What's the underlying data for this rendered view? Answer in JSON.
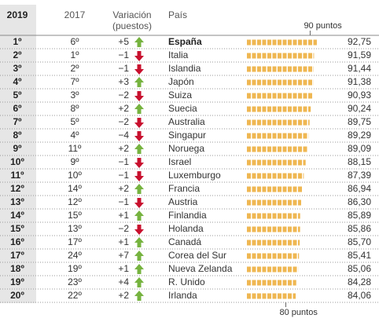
{
  "table": {
    "headers": {
      "rank_2019": "2019",
      "rank_2017": "2017",
      "change": [
        "Variación",
        "(puestos)"
      ],
      "country": "País"
    },
    "bar_scale": {
      "xlim": [
        64,
        96
      ],
      "xticks": [
        {
          "value": 90,
          "label": "90 puntos"
        },
        {
          "value": 80,
          "label": "80 puntos"
        }
      ],
      "color": "#efb752"
    },
    "rows": [
      {
        "rank_2019": "1º",
        "rank_2017": "6º",
        "change": "+5",
        "country": "España",
        "score": 92.75,
        "score_label": "92,75"
      },
      {
        "rank_2019": "2º",
        "rank_2017": "1º",
        "change": "−1",
        "country": "Italia",
        "score": 91.59,
        "score_label": "91,59"
      },
      {
        "rank_2019": "3º",
        "rank_2017": "2º",
        "change": "−1",
        "country": "Islandia",
        "score": 91.44,
        "score_label": "91,44"
      },
      {
        "rank_2019": "4º",
        "rank_2017": "7º",
        "change": "+3",
        "country": "Japón",
        "score": 91.38,
        "score_label": "91,38"
      },
      {
        "rank_2019": "5º",
        "rank_2017": "3º",
        "change": "−2",
        "country": "Suiza",
        "score": 90.93,
        "score_label": "90,93"
      },
      {
        "rank_2019": "6º",
        "rank_2017": "8º",
        "change": "+2",
        "country": "Suecia",
        "score": 90.24,
        "score_label": "90,24"
      },
      {
        "rank_2019": "7º",
        "rank_2017": "5º",
        "change": "−2",
        "country": "Australia",
        "score": 89.75,
        "score_label": "89,75"
      },
      {
        "rank_2019": "8º",
        "rank_2017": "4º",
        "change": "−4",
        "country": "Singapur",
        "score": 89.29,
        "score_label": "89,29"
      },
      {
        "rank_2019": "9º",
        "rank_2017": "11º",
        "change": "+2",
        "country": "Noruega",
        "score": 89.09,
        "score_label": "89,09"
      },
      {
        "rank_2019": "10º",
        "rank_2017": "9º",
        "change": "−1",
        "country": "Israel",
        "score": 88.15,
        "score_label": "88,15"
      },
      {
        "rank_2019": "11º",
        "rank_2017": "10º",
        "change": "−1",
        "country": "Luxemburgo",
        "score": 87.39,
        "score_label": "87,39"
      },
      {
        "rank_2019": "12º",
        "rank_2017": "14º",
        "change": "+2",
        "country": "Francia",
        "score": 86.94,
        "score_label": "86,94"
      },
      {
        "rank_2019": "13º",
        "rank_2017": "12º",
        "change": "−1",
        "country": "Austria",
        "score": 86.3,
        "score_label": "86,30"
      },
      {
        "rank_2019": "14º",
        "rank_2017": "15º",
        "change": "+1",
        "country": "Finlandia",
        "score": 85.89,
        "score_label": "85,89"
      },
      {
        "rank_2019": "15º",
        "rank_2017": "13º",
        "change": "−2",
        "country": "Holanda",
        "score": 85.86,
        "score_label": "85,86"
      },
      {
        "rank_2019": "16º",
        "rank_2017": "17º",
        "change": "+1",
        "country": "Canadá",
        "score": 85.7,
        "score_label": "85,70"
      },
      {
        "rank_2019": "17º",
        "rank_2017": "24º",
        "change": "+7",
        "country": "Corea del Sur",
        "score": 85.41,
        "score_label": "85,41"
      },
      {
        "rank_2019": "18º",
        "rank_2017": "19º",
        "change": "+1",
        "country": "Nueva Zelanda",
        "score": 85.06,
        "score_label": "85,06"
      },
      {
        "rank_2019": "19º",
        "rank_2017": "23º",
        "change": "+4",
        "country": "R. Unido",
        "score": 84.28,
        "score_label": "84,28"
      },
      {
        "rank_2019": "20º",
        "rank_2017": "22º",
        "change": "+2",
        "country": "Irlanda",
        "score": 84.06,
        "score_label": "84,06"
      }
    ]
  }
}
